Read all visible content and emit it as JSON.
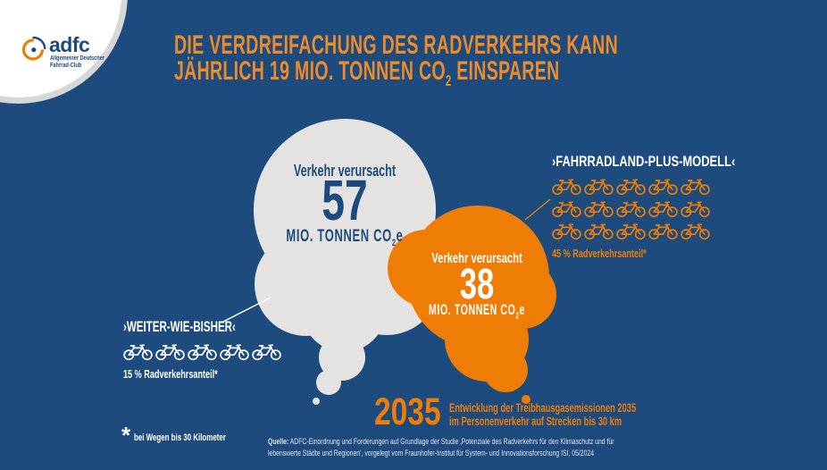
{
  "colors": {
    "background": "#1d4b7d",
    "orange": "#ee7d05",
    "orange_title": "#ed8b2b",
    "cloud_gray": "#e4e3e2",
    "navy": "#1c4a7c",
    "white": "#ffffff",
    "ring_gray": "#d7d7d7",
    "source_text": "#dfe5ee"
  },
  "logo": {
    "wordmark": "adfc",
    "subtitle_line1": "Allgemeiner Deutscher",
    "subtitle_line2": "Fahrrad-Club"
  },
  "title": {
    "line1": "DIE VERDREIFACHUNG DES RADVERKEHRS KANN",
    "line2_prefix": "JÄHRLICH 19 MIO. TONNEN CO",
    "line2_sub": "2",
    "line2_suffix": " EINSPAREN"
  },
  "bubble_before": {
    "label": "Verkehr verursacht",
    "value": "57",
    "unit_prefix": "MIO. TONNEN CO",
    "unit_sub": "2",
    "unit_suffix": "e"
  },
  "bubble_after": {
    "label": "Verkehr verursacht",
    "value": "38",
    "unit_prefix": "MIO. TONNEN CO",
    "unit_sub": "2",
    "unit_suffix": "e"
  },
  "scenario_left": {
    "title": "›WEITER-WIE-BISHER‹",
    "share": "15 % Radverkehrsanteil*",
    "bikes": 5,
    "bikes_per_row": 5,
    "bike_color": "#ffffff"
  },
  "scenario_right": {
    "title": "›FAHRRADLAND-PLUS-MODELL‹",
    "share": "45 % Radverkehrsanteil*",
    "bikes": 15,
    "bikes_per_row": 5,
    "bike_color": "#ee7d05"
  },
  "year_callout": {
    "year": "2035",
    "caption_line1": "Entwicklung der Treibhausgasemissionen 2035",
    "caption_line2": "im Personenverkehr auf Strecken bis 30 km"
  },
  "footnote": {
    "symbol": "*",
    "text": "bei Wegen bis 30 Kilometer"
  },
  "source": {
    "label": "Quelle:",
    "line1": "ADFC-Einordnung und Forderungen auf Grundlage der Studie ‚Potenziale des Radverkehrs für den Klimaschutz und für",
    "line2": "lebenswerte Städte und Regionen‘, vorgelegt vom Fraunhofer-Institut für System- und Innovationsforschung ISI, 05/2024"
  },
  "chart_data": {
    "type": "bubble",
    "title": "Die Verdreifachung des Radverkehrs kann jährlich 19 Mio. Tonnen CO2 einsparen",
    "subtitle": "Entwicklung der Treibhausgasemissionen 2035 im Personenverkehr auf Strecken bis 30 km",
    "unit": "Mio. Tonnen CO2e",
    "year": "2035",
    "co2_savings_mio_tonnen": 19,
    "series": [
      {
        "name": "›Weiter-wie-bisher‹",
        "emissions_mio_tonnen_co2e": 57,
        "radverkehrsanteil_percent": 15,
        "bike_icon_count": 5,
        "bubble_color": "#e4e3e2"
      },
      {
        "name": "›Fahrradland-Plus-Modell‹",
        "emissions_mio_tonnen_co2e": 38,
        "radverkehrsanteil_percent": 45,
        "bike_icon_count": 15,
        "bubble_color": "#ee7d05"
      }
    ],
    "footnote": "* bei Wegen bis 30 Kilometer",
    "source": "Quelle: ADFC-Einordnung und Forderungen auf Grundlage der Studie ‚Potenziale des Radverkehrs für den Klimaschutz und für lebenswerte Städte und Regionen‘, vorgelegt vom Fraunhofer-Institut für System- und Innovationsforschung ISI, 05/2024",
    "legend_position": "none",
    "grid": false
  }
}
